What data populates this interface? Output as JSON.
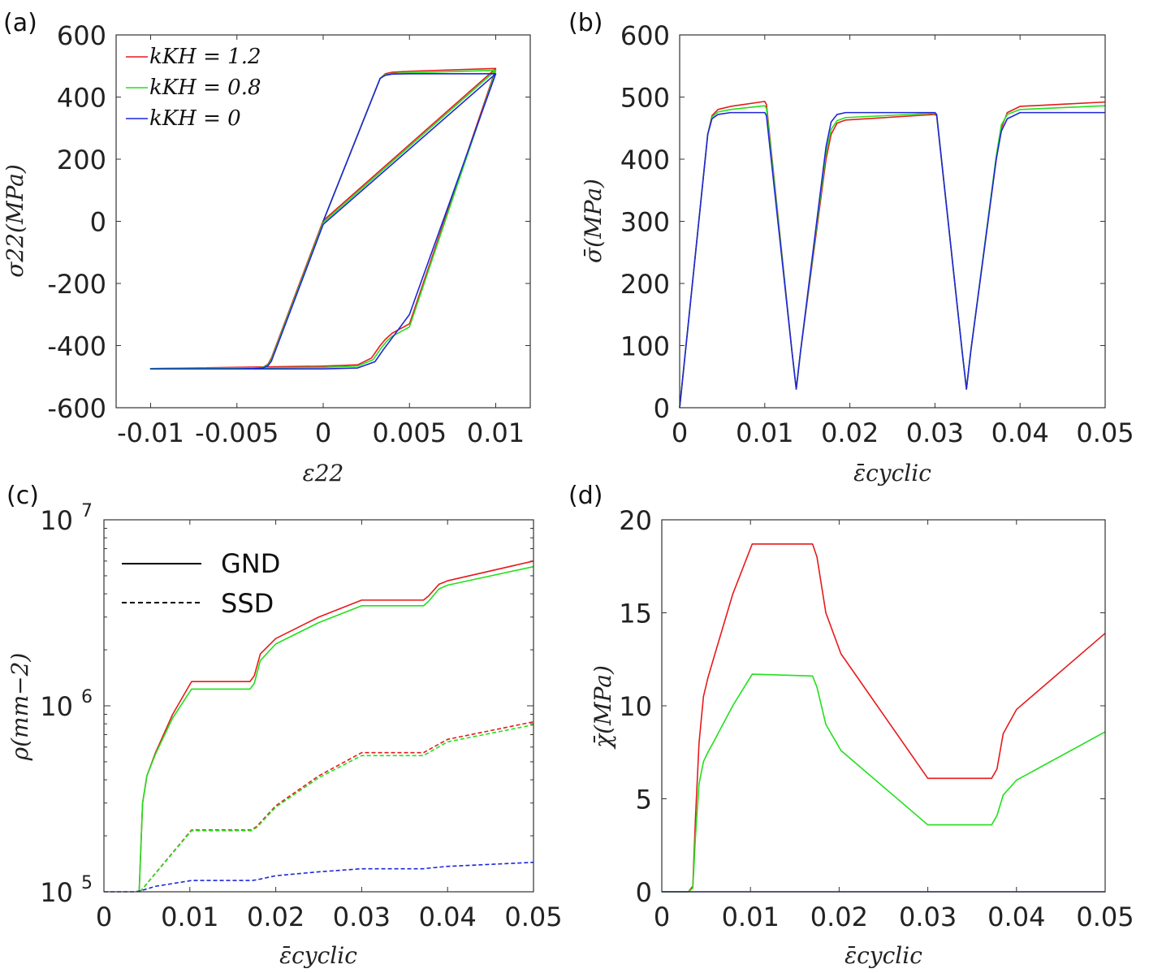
{
  "chart_data": [
    {
      "id": "a",
      "panel_label": "(a)",
      "type": "line",
      "xlabel": "ε22",
      "ylabel": "σ22(MPa)",
      "xlim": [
        -0.012,
        0.012
      ],
      "ylim": [
        -600,
        600
      ],
      "xticks": [
        -0.01,
        -0.005,
        0,
        0.005,
        0.01
      ],
      "xtick_labels": [
        "-0.01",
        "-0.005",
        "0",
        "0.005",
        "0.01"
      ],
      "yticks": [
        -600,
        -400,
        -200,
        0,
        200,
        400,
        600
      ],
      "ytick_labels": [
        "-600",
        "-400",
        "-200",
        "0",
        "200",
        "400",
        "600"
      ],
      "legend": [
        "kKH = 1.2",
        "kKH = 0.8",
        "kKH = 0"
      ],
      "series": [
        {
          "name": "kKH = 1.2",
          "color": "#e8191b",
          "style": "solid",
          "x": [
            0,
            0.0033,
            0.0036,
            0.004,
            0.005,
            0.01,
            0.01,
            0.0,
            -0.003,
            -0.0032,
            -0.0035,
            -0.004,
            -0.005,
            -0.01,
            -0.01,
            0.0,
            0.002,
            0.0028,
            0.0033,
            0.0036,
            0.004,
            0.005,
            0.01
          ],
          "y": [
            0,
            460,
            475,
            480,
            483,
            492,
            492,
            2,
            -440,
            -460,
            -470,
            -473,
            -475,
            -474,
            -474,
            -466,
            -462,
            -440,
            -400,
            -380,
            -360,
            -330,
            490
          ]
        },
        {
          "name": "kKH = 0.8",
          "color": "#22e01c",
          "style": "solid",
          "x": [
            0,
            0.0033,
            0.0036,
            0.004,
            0.005,
            0.01,
            0.01,
            0.0,
            -0.003,
            -0.0032,
            -0.0035,
            -0.004,
            -0.005,
            -0.01,
            -0.01,
            0.0,
            0.002,
            0.0029,
            0.0034,
            0.0037,
            0.004,
            0.005,
            0.01
          ],
          "y": [
            0,
            460,
            472,
            476,
            478,
            486,
            486,
            -4,
            -445,
            -462,
            -470,
            -473,
            -474,
            -474,
            -474,
            -470,
            -466,
            -445,
            -405,
            -385,
            -370,
            -340,
            484
          ]
        },
        {
          "name": "kKH = 0",
          "color": "#1f26d9",
          "style": "solid",
          "x": [
            0,
            0.0033,
            0.0036,
            0.004,
            0.005,
            0.01,
            0.01,
            0.0,
            -0.003,
            -0.0032,
            -0.0035,
            -0.004,
            -0.005,
            -0.01,
            -0.01,
            0.0,
            0.002,
            0.003,
            0.0035,
            0.0038,
            0.0042,
            0.005,
            0.01
          ],
          "y": [
            0,
            460,
            470,
            474,
            475,
            475,
            475,
            -10,
            -450,
            -465,
            -472,
            -474,
            -475,
            -475,
            -475,
            -475,
            -472,
            -452,
            -412,
            -390,
            -360,
            -300,
            475
          ]
        }
      ]
    },
    {
      "id": "b",
      "panel_label": "(b)",
      "type": "line",
      "xlabel": "ε̄cyclic",
      "ylabel": "σ̄(MPa)",
      "xlim": [
        0,
        0.05
      ],
      "ylim": [
        0,
        600
      ],
      "xticks": [
        0,
        0.01,
        0.02,
        0.03,
        0.04,
        0.05
      ],
      "xtick_labels": [
        "0",
        "0.01",
        "0.02",
        "0.03",
        "0.04",
        "0.05"
      ],
      "yticks": [
        0,
        100,
        200,
        300,
        400,
        500,
        600
      ],
      "ytick_labels": [
        "0",
        "100",
        "200",
        "300",
        "400",
        "500",
        "600"
      ],
      "series": [
        {
          "name": "kKH = 1.2",
          "color": "#e8191b",
          "style": "solid",
          "x": [
            0,
            0.0033,
            0.0038,
            0.0045,
            0.006,
            0.01,
            0.0102,
            0.0132,
            0.0137,
            0.0142,
            0.0172,
            0.0178,
            0.0185,
            0.0195,
            0.03,
            0.0302,
            0.0332,
            0.0337,
            0.0342,
            0.0372,
            0.0378,
            0.0385,
            0.04,
            0.05
          ],
          "y": [
            0,
            440,
            470,
            480,
            485,
            493,
            488,
            90,
            30,
            90,
            400,
            440,
            458,
            463,
            472,
            470,
            90,
            30,
            90,
            400,
            450,
            475,
            485,
            492
          ]
        },
        {
          "name": "kKH = 0.8",
          "color": "#22e01c",
          "style": "solid",
          "x": [
            0,
            0.0033,
            0.0038,
            0.0045,
            0.006,
            0.01,
            0.0102,
            0.0132,
            0.0137,
            0.0142,
            0.0172,
            0.0178,
            0.0185,
            0.0195,
            0.03,
            0.0302,
            0.0332,
            0.0337,
            0.0342,
            0.0372,
            0.0378,
            0.0385,
            0.04,
            0.05
          ],
          "y": [
            0,
            440,
            468,
            476,
            480,
            486,
            482,
            90,
            30,
            90,
            410,
            448,
            462,
            467,
            474,
            472,
            90,
            30,
            90,
            405,
            455,
            472,
            480,
            486
          ]
        },
        {
          "name": "kKH = 0",
          "color": "#1f26d9",
          "style": "solid",
          "x": [
            0,
            0.0033,
            0.0038,
            0.0045,
            0.006,
            0.01,
            0.0102,
            0.0132,
            0.0137,
            0.0142,
            0.0172,
            0.0178,
            0.0185,
            0.0195,
            0.03,
            0.0302,
            0.0332,
            0.0337,
            0.0342,
            0.0372,
            0.0378,
            0.0385,
            0.04,
            0.05
          ],
          "y": [
            0,
            440,
            465,
            472,
            475,
            475,
            470,
            90,
            30,
            90,
            420,
            460,
            472,
            475,
            475,
            472,
            90,
            30,
            90,
            400,
            445,
            465,
            475,
            475
          ]
        }
      ]
    },
    {
      "id": "c",
      "panel_label": "(c)",
      "type": "line",
      "xlabel": "ε̄cyclic",
      "ylabel": "ρ(mm−2)",
      "yscale": "log",
      "xlim": [
        0,
        0.05
      ],
      "ylim": [
        100000,
        10000000
      ],
      "xticks": [
        0,
        0.01,
        0.02,
        0.03,
        0.04,
        0.05
      ],
      "xtick_labels": [
        "0",
        "0.01",
        "0.02",
        "0.03",
        "0.04",
        "0.05"
      ],
      "yticks": [
        100000,
        1000000,
        10000000
      ],
      "ytick_base": "10",
      "ytick_exponents": [
        "5",
        "6",
        "7"
      ],
      "legend": [
        "GND",
        "SSD"
      ],
      "series": [
        {
          "name": "GND kKH = 1.2",
          "color": "#e8191b",
          "style": "solid",
          "x": [
            0.0041,
            0.0045,
            0.005,
            0.006,
            0.008,
            0.0102,
            0.017,
            0.0175,
            0.0182,
            0.02,
            0.025,
            0.03,
            0.0372,
            0.0378,
            0.039,
            0.04,
            0.05
          ],
          "y": [
            100000,
            300000,
            420000,
            560000,
            900000,
            1350000,
            1350000,
            1450000,
            1900000,
            2300000,
            3000000,
            3700000,
            3700000,
            3900000,
            4500000,
            4700000,
            6000000
          ]
        },
        {
          "name": "GND kKH = 0.8",
          "color": "#22e01c",
          "style": "solid",
          "x": [
            0.0041,
            0.0045,
            0.005,
            0.006,
            0.008,
            0.0102,
            0.017,
            0.0175,
            0.0182,
            0.02,
            0.025,
            0.03,
            0.0372,
            0.0378,
            0.039,
            0.04,
            0.05
          ],
          "y": [
            100000,
            300000,
            420000,
            550000,
            860000,
            1230000,
            1230000,
            1320000,
            1750000,
            2150000,
            2800000,
            3450000,
            3450000,
            3650000,
            4250000,
            4450000,
            5600000
          ]
        },
        {
          "name": "SSD kKH = 1.2",
          "color": "#e8191b",
          "style": "dashed",
          "x": [
            0.0042,
            0.0102,
            0.0172,
            0.0178,
            0.02,
            0.025,
            0.03,
            0.0372,
            0.0378,
            0.04,
            0.05
          ],
          "y": [
            100000,
            215000,
            215000,
            225000,
            290000,
            420000,
            560000,
            560000,
            580000,
            660000,
            820000
          ]
        },
        {
          "name": "SSD kKH = 0.8",
          "color": "#22e01c",
          "style": "dashed",
          "x": [
            0.0042,
            0.0102,
            0.0172,
            0.0178,
            0.02,
            0.025,
            0.03,
            0.0372,
            0.0378,
            0.04,
            0.05
          ],
          "y": [
            100000,
            213000,
            213000,
            222000,
            285000,
            410000,
            540000,
            540000,
            560000,
            640000,
            790000
          ]
        },
        {
          "name": "SSD kKH = 0",
          "color": "#1f26d9",
          "style": "dashed",
          "x": [
            0,
            0.0036,
            0.0042,
            0.006,
            0.0102,
            0.0172,
            0.0178,
            0.02,
            0.025,
            0.03,
            0.0372,
            0.0378,
            0.04,
            0.05
          ],
          "y": [
            100000,
            100000,
            101000,
            107000,
            115000,
            115000,
            116000,
            122000,
            128000,
            133000,
            133000,
            134000,
            137000,
            144000
          ]
        }
      ]
    },
    {
      "id": "d",
      "panel_label": "(d)",
      "type": "line",
      "xlabel": "ε̄cyclic",
      "ylabel": "χ̄(MPa)",
      "xlim": [
        0,
        0.05
      ],
      "ylim": [
        0,
        20
      ],
      "xticks": [
        0,
        0.01,
        0.02,
        0.03,
        0.04,
        0.05
      ],
      "xtick_labels": [
        "0",
        "0.01",
        "0.02",
        "0.03",
        "0.04",
        "0.05"
      ],
      "yticks": [
        0,
        5,
        10,
        15,
        20
      ],
      "ytick_labels": [
        "0",
        "5",
        "10",
        "15",
        "20"
      ],
      "series": [
        {
          "name": "kKH = 1.2",
          "color": "#e8191b",
          "style": "solid",
          "x": [
            0,
            0.003,
            0.0035,
            0.0038,
            0.0042,
            0.0047,
            0.0052,
            0.006,
            0.008,
            0.0102,
            0.017,
            0.0175,
            0.0185,
            0.0202,
            0.03,
            0.0372,
            0.0378,
            0.0385,
            0.04,
            0.05
          ],
          "y": [
            0,
            0,
            0.3,
            4,
            8,
            10.5,
            11.5,
            12.8,
            16,
            18.7,
            18.7,
            18,
            15,
            12.8,
            6.1,
            6.1,
            6.6,
            8.5,
            9.8,
            13.9
          ]
        },
        {
          "name": "kKH = 0.8",
          "color": "#22e01c",
          "style": "solid",
          "x": [
            0,
            0.003,
            0.0035,
            0.0038,
            0.0042,
            0.0047,
            0.0052,
            0.006,
            0.008,
            0.0102,
            0.017,
            0.0175,
            0.0185,
            0.0202,
            0.03,
            0.0372,
            0.0378,
            0.0385,
            0.04,
            0.05
          ],
          "y": [
            0,
            0,
            0.2,
            3,
            5.8,
            7,
            7.5,
            8.2,
            10,
            11.7,
            11.6,
            11,
            9,
            7.6,
            3.6,
            3.6,
            4.1,
            5.2,
            6,
            8.6
          ]
        },
        {
          "name": "kKH = 0",
          "color": "#1f26d9",
          "style": "solid",
          "x": [
            0,
            0.05
          ],
          "y": [
            0,
            0
          ]
        }
      ]
    }
  ]
}
